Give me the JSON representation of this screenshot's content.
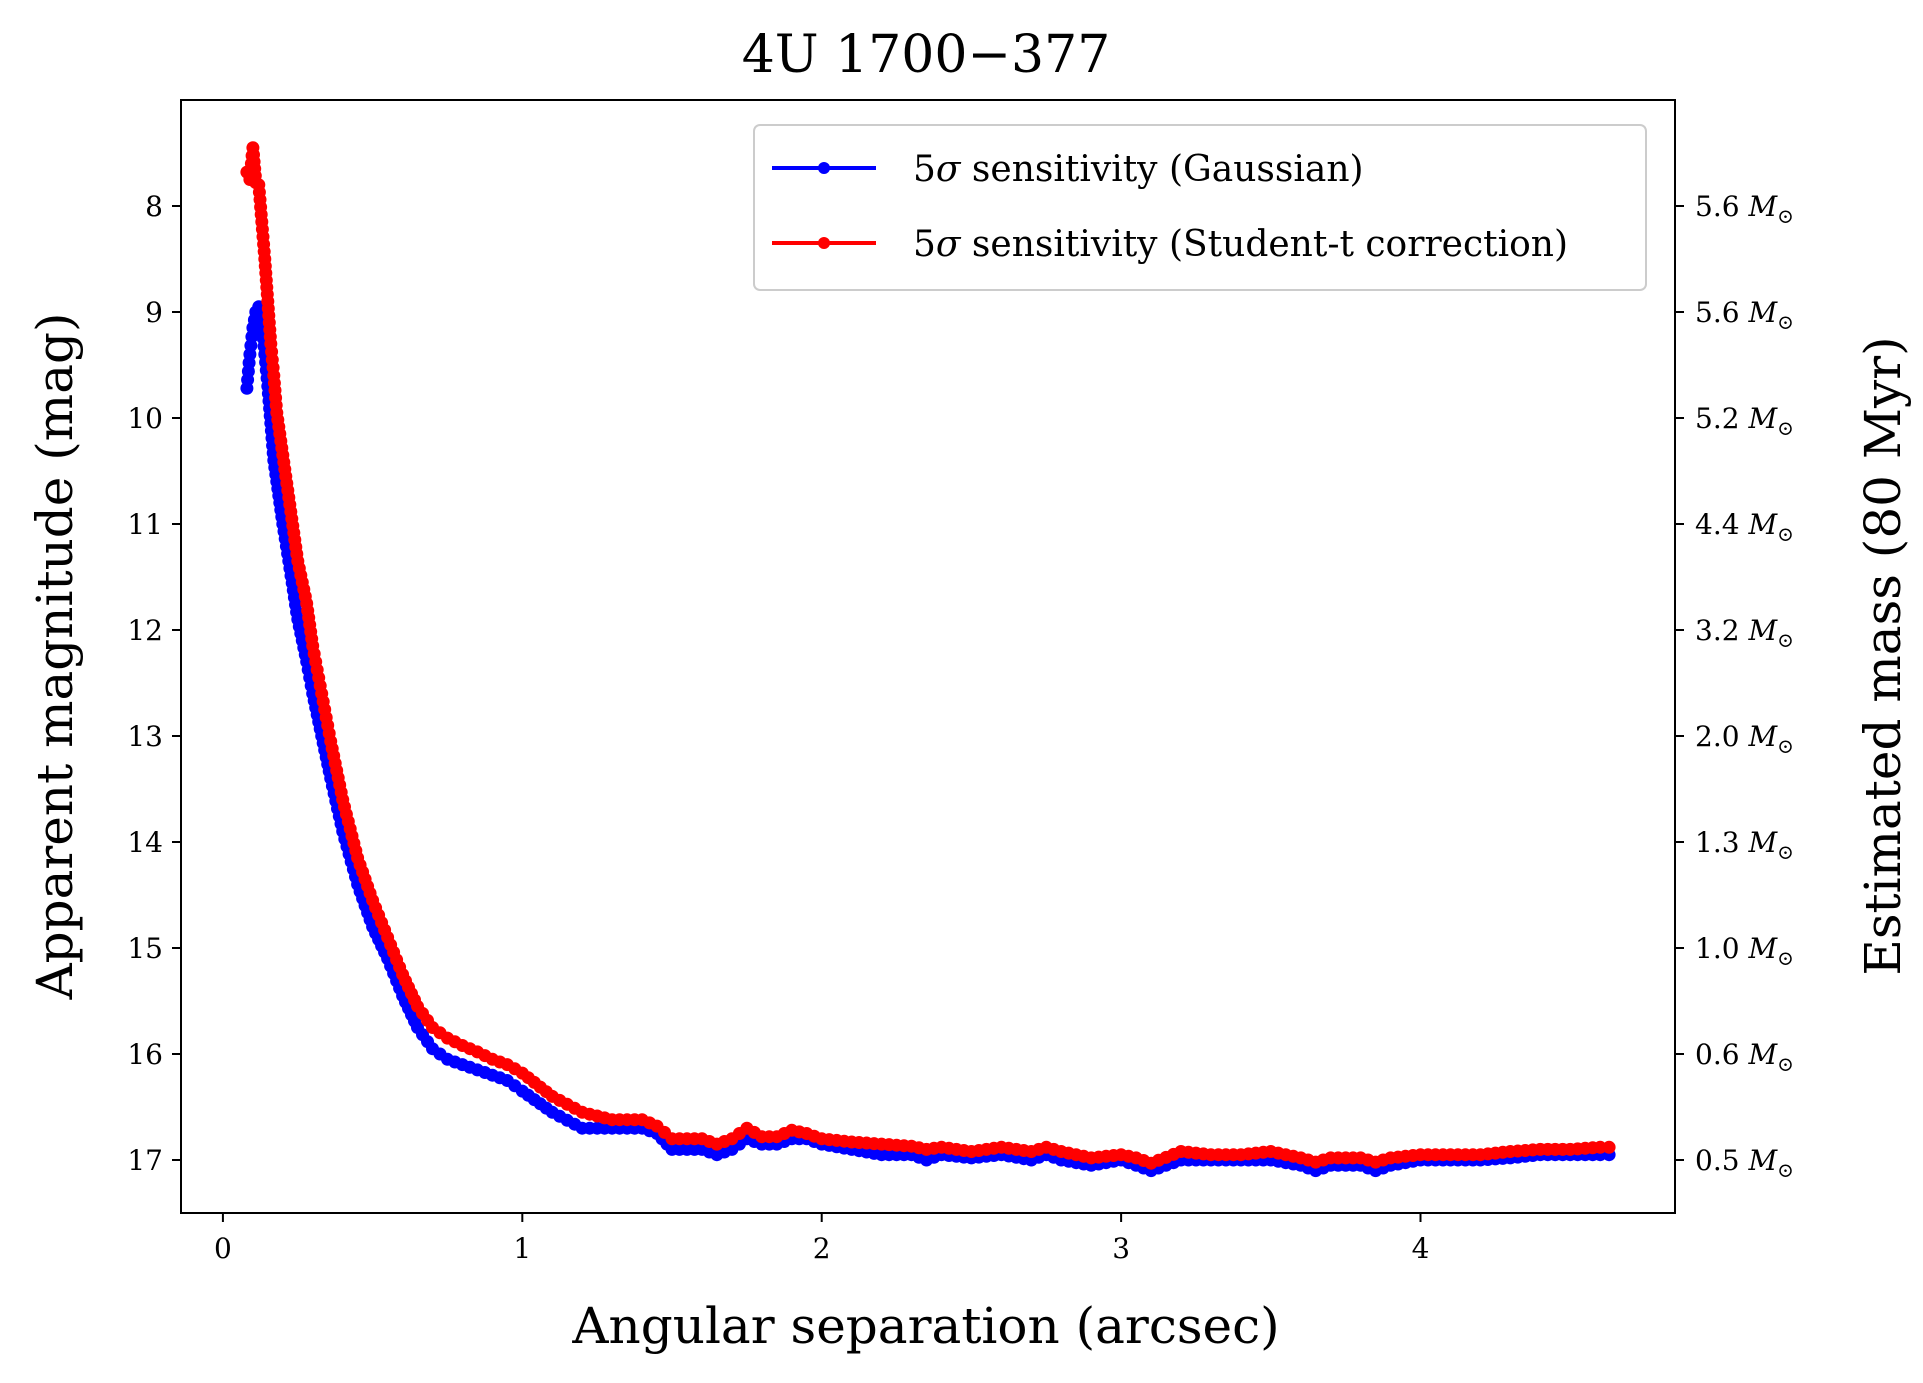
{
  "chart_data": {
    "type": "line",
    "title": "4U 1700−377",
    "xlabel": "Angular separation (arcsec)",
    "ylabel": "Apparent magnitude (mag)",
    "y2label": "Estimated mass (80 Myr)",
    "xlim": [
      -0.14,
      4.85
    ],
    "ylim": [
      17.5,
      7.0
    ],
    "y_inverted": true,
    "x_ticks": [
      0,
      1,
      2,
      3,
      4
    ],
    "x_tick_labels": [
      "0",
      "1",
      "2",
      "3",
      "4"
    ],
    "y_ticks": [
      8,
      9,
      10,
      11,
      12,
      13,
      14,
      15,
      16,
      17
    ],
    "y_tick_labels": [
      "8",
      "9",
      "10",
      "11",
      "12",
      "13",
      "14",
      "15",
      "16",
      "17"
    ],
    "y2_ticks": [
      8,
      9,
      10,
      11,
      12,
      13,
      14,
      15,
      16,
      17
    ],
    "y2_tick_values": [
      "5.6",
      "5.6",
      "5.2",
      "4.4",
      "3.2",
      "2.0",
      "1.3",
      "1.0",
      "0.6",
      "0.5"
    ],
    "y2_unit": "M",
    "y2_unit_sub": "⊙",
    "legend_position": "top-right",
    "series": [
      {
        "name": "5σ sensitivity (Gaussian)",
        "legend_prefix": "5",
        "legend_sigma": "σ",
        "legend_rest": " sensitivity (Gaussian)",
        "color": "#0000ff",
        "x": [
          0.08,
          0.09,
          0.1,
          0.11,
          0.12,
          0.13,
          0.14,
          0.15,
          0.16,
          0.17,
          0.18,
          0.2,
          0.22,
          0.25,
          0.28,
          0.3,
          0.33,
          0.36,
          0.4,
          0.45,
          0.5,
          0.55,
          0.6,
          0.65,
          0.7,
          0.75,
          0.8,
          0.85,
          0.9,
          0.95,
          1.0,
          1.1,
          1.2,
          1.3,
          1.4,
          1.45,
          1.5,
          1.6,
          1.65,
          1.7,
          1.75,
          1.8,
          1.85,
          1.9,
          1.95,
          2.0,
          2.1,
          2.2,
          2.3,
          2.35,
          2.4,
          2.5,
          2.6,
          2.7,
          2.75,
          2.8,
          2.9,
          3.0,
          3.05,
          3.1,
          3.2,
          3.3,
          3.4,
          3.5,
          3.6,
          3.65,
          3.7,
          3.8,
          3.85,
          3.9,
          4.0,
          4.1,
          4.2,
          4.3,
          4.4,
          4.5,
          4.6,
          4.63
        ],
        "y": [
          9.72,
          9.4,
          9.15,
          9.0,
          8.95,
          9.1,
          9.4,
          9.7,
          10.05,
          10.4,
          10.6,
          11.0,
          11.35,
          11.9,
          12.3,
          12.6,
          13.0,
          13.4,
          13.9,
          14.4,
          14.8,
          15.1,
          15.45,
          15.75,
          15.95,
          16.05,
          16.1,
          16.15,
          16.2,
          16.25,
          16.35,
          16.55,
          16.7,
          16.7,
          16.7,
          16.75,
          16.9,
          16.9,
          16.95,
          16.9,
          16.8,
          16.85,
          16.85,
          16.8,
          16.8,
          16.85,
          16.9,
          16.95,
          16.95,
          17.0,
          16.95,
          16.98,
          16.95,
          17.0,
          16.95,
          17.0,
          17.05,
          17.0,
          17.05,
          17.1,
          17.0,
          17.0,
          17.0,
          17.0,
          17.05,
          17.1,
          17.05,
          17.05,
          17.1,
          17.05,
          17.0,
          17.0,
          17.0,
          16.98,
          16.95,
          16.95,
          16.95,
          16.95
        ]
      },
      {
        "name": "5σ sensitivity (Student-t correction)",
        "legend_prefix": "5",
        "legend_sigma": "σ",
        "legend_rest": " sensitivity (Student-t correction)",
        "color": "#ff0000",
        "x": [
          0.08,
          0.09,
          0.1,
          0.11,
          0.12,
          0.13,
          0.14,
          0.15,
          0.16,
          0.17,
          0.18,
          0.2,
          0.22,
          0.25,
          0.28,
          0.3,
          0.33,
          0.36,
          0.4,
          0.45,
          0.5,
          0.55,
          0.6,
          0.65,
          0.7,
          0.75,
          0.8,
          0.85,
          0.9,
          0.95,
          1.0,
          1.1,
          1.2,
          1.3,
          1.4,
          1.45,
          1.5,
          1.6,
          1.65,
          1.7,
          1.75,
          1.8,
          1.85,
          1.9,
          1.95,
          2.0,
          2.1,
          2.2,
          2.3,
          2.35,
          2.4,
          2.5,
          2.6,
          2.7,
          2.75,
          2.8,
          2.9,
          3.0,
          3.05,
          3.1,
          3.2,
          3.3,
          3.4,
          3.5,
          3.6,
          3.65,
          3.7,
          3.8,
          3.85,
          3.9,
          4.0,
          4.1,
          4.2,
          4.3,
          4.4,
          4.5,
          4.6,
          4.63
        ],
        "y": [
          7.68,
          7.75,
          7.45,
          7.78,
          7.8,
          8.15,
          8.5,
          8.9,
          9.3,
          9.6,
          9.95,
          10.35,
          10.75,
          11.35,
          11.75,
          12.15,
          12.6,
          13.05,
          13.6,
          14.15,
          14.55,
          14.9,
          15.25,
          15.55,
          15.75,
          15.85,
          15.92,
          15.98,
          16.05,
          16.1,
          16.18,
          16.4,
          16.55,
          16.62,
          16.62,
          16.68,
          16.8,
          16.8,
          16.85,
          16.8,
          16.7,
          16.78,
          16.78,
          16.72,
          16.75,
          16.8,
          16.83,
          16.85,
          16.87,
          16.9,
          16.88,
          16.92,
          16.88,
          16.92,
          16.88,
          16.92,
          16.98,
          16.95,
          16.98,
          17.03,
          16.92,
          16.95,
          16.95,
          16.92,
          16.98,
          17.02,
          16.98,
          16.98,
          17.02,
          16.98,
          16.95,
          16.95,
          16.95,
          16.92,
          16.9,
          16.9,
          16.88,
          16.88
        ]
      }
    ]
  }
}
